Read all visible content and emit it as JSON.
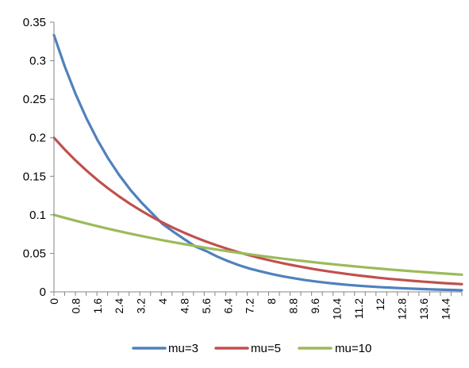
{
  "chart_data": {
    "type": "line",
    "title": "",
    "xlabel": "",
    "ylabel": "",
    "x_range": [
      0,
      15
    ],
    "ylim": [
      0,
      0.35
    ],
    "y_ticks": [
      "0",
      "0.05",
      "0.1",
      "0.15",
      "0.2",
      "0.25",
      "0.3",
      "0.35"
    ],
    "x_tick_labels": [
      "0",
      "0.8",
      "1.6",
      "2.4",
      "3.2",
      "4",
      "4.8",
      "5.6",
      "6.4",
      "7.2",
      "8",
      "8.8",
      "9.6",
      "10.4",
      "11.2",
      "12",
      "12.8",
      "13.6",
      "14.4"
    ],
    "grid": false,
    "legend_position": "bottom",
    "series": [
      {
        "name": "mu=3",
        "color": "#4F81BD",
        "x": [
          0,
          0.4,
          0.8,
          1.2,
          1.6,
          2,
          2.4,
          2.8,
          3.2,
          3.6,
          4,
          4.4,
          4.8,
          5.2,
          5.6,
          6,
          6.4,
          6.8,
          7.2,
          7.6,
          8,
          8.4,
          8.8,
          9.2,
          9.6,
          10,
          10.4,
          10.8,
          11.2,
          11.6,
          12,
          12.4,
          12.8,
          13.2,
          13.6,
          14,
          14.4,
          14.8,
          15
        ],
        "y": [
          0.3333,
          0.2923,
          0.2564,
          0.2248,
          0.1971,
          0.1728,
          0.1516,
          0.1329,
          0.1166,
          0.1022,
          0.0879,
          0.0778,
          0.0682,
          0.0589,
          0.0529,
          0.0459,
          0.0399,
          0.0346,
          0.0302,
          0.0266,
          0.0232,
          0.0203,
          0.0178,
          0.0155,
          0.0136,
          0.0119,
          0.0104,
          0.0091,
          0.008,
          0.007,
          0.0061,
          0.0054,
          0.0047,
          0.0041,
          0.0036,
          0.0031,
          0.0027,
          0.0024,
          0.0021
        ]
      },
      {
        "name": "mu=5",
        "color": "#C0504D",
        "x": [
          0,
          0.4,
          0.8,
          1.2,
          1.6,
          2,
          2.4,
          2.8,
          3.2,
          3.6,
          4,
          4.4,
          4.8,
          5.2,
          5.6,
          6,
          6.4,
          6.8,
          7.2,
          7.6,
          8,
          8.4,
          8.8,
          9.2,
          9.6,
          10,
          10.4,
          10.8,
          11.2,
          11.6,
          12,
          12.4,
          12.8,
          13.2,
          13.6,
          14,
          14.4,
          14.8,
          15
        ],
        "y": [
          0.2,
          0.1846,
          0.1704,
          0.1573,
          0.1452,
          0.1341,
          0.1238,
          0.1142,
          0.1055,
          0.0973,
          0.0899,
          0.0829,
          0.0766,
          0.0707,
          0.0652,
          0.0602,
          0.0556,
          0.0513,
          0.0474,
          0.0437,
          0.0404,
          0.0373,
          0.0344,
          0.0318,
          0.0293,
          0.0271,
          0.025,
          0.0231,
          0.0213,
          0.0197,
          0.0181,
          0.0167,
          0.0155,
          0.0143,
          0.0132,
          0.0122,
          0.0112,
          0.0104,
          0.01
        ]
      },
      {
        "name": "mu=10",
        "color": "#9BBB59",
        "x": [
          0,
          0.4,
          0.8,
          1.2,
          1.6,
          2,
          2.4,
          2.8,
          3.2,
          3.6,
          4,
          4.4,
          4.8,
          5.2,
          5.6,
          6,
          6.4,
          6.8,
          7.2,
          7.6,
          8,
          8.4,
          8.8,
          9.2,
          9.6,
          10,
          10.4,
          10.8,
          11.2,
          11.6,
          12,
          12.4,
          12.8,
          13.2,
          13.6,
          14,
          14.4,
          14.8,
          15
        ],
        "y": [
          0.1,
          0.0961,
          0.0923,
          0.0887,
          0.0852,
          0.0819,
          0.0787,
          0.0756,
          0.0726,
          0.0698,
          0.067,
          0.0644,
          0.0619,
          0.0595,
          0.0571,
          0.0549,
          0.0527,
          0.0507,
          0.0487,
          0.0468,
          0.0449,
          0.0432,
          0.0415,
          0.0399,
          0.0383,
          0.0368,
          0.0353,
          0.034,
          0.0326,
          0.0313,
          0.0301,
          0.0289,
          0.0278,
          0.0267,
          0.0257,
          0.0247,
          0.0237,
          0.0228,
          0.0223
        ]
      }
    ]
  }
}
